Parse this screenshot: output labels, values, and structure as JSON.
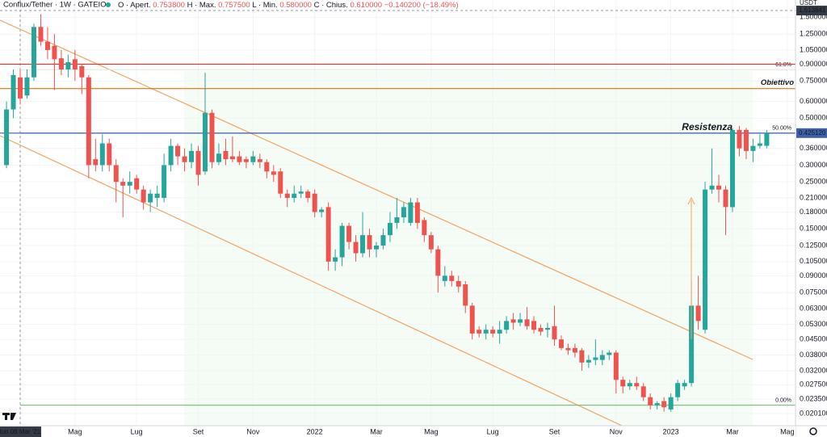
{
  "header": {
    "title": "Conflux/Tether · 1W · GATEIO",
    "open_label": "O · Apert.",
    "open": "0.753800",
    "high_label": "H · Max.",
    "high": "0.757500",
    "low_label": "L · Min.",
    "low": "0.580000",
    "close_label": "C · Chius.",
    "close": "0.610000",
    "change": "−0.140200 (−18.49%)"
  },
  "chart_data": {
    "type": "candlestick",
    "currency": "USDT",
    "log_scale": true,
    "grid": true,
    "up_color": "#26a69a",
    "down_color": "#ef5350",
    "x": [
      -2,
      -1,
      0,
      1,
      2,
      3,
      4,
      5,
      6,
      7,
      8,
      9,
      10,
      11,
      12,
      13,
      14,
      15,
      16,
      17,
      18,
      19,
      20,
      21,
      22,
      23,
      24,
      25,
      26,
      27,
      28,
      29,
      30,
      31,
      32,
      33,
      34,
      35,
      36,
      37,
      38,
      39,
      40,
      41,
      42,
      43,
      44,
      45,
      46,
      47,
      48,
      49,
      50,
      51,
      52,
      53,
      54,
      55,
      56,
      57,
      58,
      59,
      60,
      61,
      62,
      63,
      64,
      65,
      66,
      67,
      68,
      69,
      70,
      71,
      72,
      73,
      74,
      75,
      76,
      77,
      78,
      79,
      80,
      81,
      82,
      83,
      84,
      85,
      86,
      87,
      88,
      89,
      90,
      91,
      92,
      93,
      94,
      95,
      96,
      97,
      98,
      99,
      100,
      101,
      102,
      103,
      104,
      105,
      106,
      107,
      108,
      109
    ],
    "open": [
      0.3,
      0.55,
      0.78,
      0.64,
      0.78,
      1.35,
      1.15,
      1.1,
      0.96,
      0.85,
      0.95,
      0.88,
      0.78,
      0.32,
      0.3,
      0.38,
      0.3,
      0.25,
      0.24,
      0.26,
      0.23,
      0.2,
      0.21,
      0.21,
      0.3,
      0.37,
      0.33,
      0.31,
      0.35,
      0.28,
      0.53,
      0.31,
      0.35,
      0.33,
      0.33,
      0.32,
      0.31,
      0.32,
      0.31,
      0.28,
      0.28,
      0.22,
      0.21,
      0.22,
      0.225,
      0.22,
      0.18,
      0.19,
      0.105,
      0.11,
      0.155,
      0.13,
      0.115,
      0.14,
      0.12,
      0.125,
      0.14,
      0.16,
      0.17,
      0.16,
      0.2,
      0.165,
      0.14,
      0.12,
      0.085,
      0.09,
      0.085,
      0.082,
      0.065,
      0.05,
      0.048,
      0.05,
      0.048,
      0.05,
      0.056,
      0.054,
      0.056,
      0.055,
      0.051,
      0.05,
      0.052,
      0.045,
      0.041,
      0.041,
      0.04,
      0.035,
      0.036,
      0.036,
      0.038,
      0.039,
      0.029,
      0.027,
      0.028,
      0.027,
      0.024,
      0.022,
      0.023,
      0.021,
      0.024,
      0.027,
      0.028,
      0.065,
      0.05,
      0.23,
      0.24,
      0.23,
      0.19,
      0.44,
      0.44,
      0.35,
      0.37,
      0.37
    ],
    "high": [
      0.6,
      0.85,
      0.85,
      0.85,
      1.4,
      1.55,
      1.35,
      1.25,
      1.05,
      1.0,
      1.05,
      0.9,
      0.8,
      0.4,
      0.42,
      0.4,
      0.32,
      0.26,
      0.28,
      0.27,
      0.24,
      0.23,
      0.24,
      0.34,
      0.4,
      0.38,
      0.36,
      0.38,
      0.37,
      0.82,
      0.55,
      0.38,
      0.4,
      0.41,
      0.35,
      0.33,
      0.35,
      0.34,
      0.32,
      0.3,
      0.29,
      0.23,
      0.24,
      0.24,
      0.23,
      0.23,
      0.19,
      0.2,
      0.12,
      0.16,
      0.16,
      0.14,
      0.18,
      0.15,
      0.13,
      0.15,
      0.18,
      0.21,
      0.2,
      0.21,
      0.21,
      0.17,
      0.145,
      0.125,
      0.1,
      0.095,
      0.09,
      0.085,
      0.067,
      0.052,
      0.053,
      0.052,
      0.055,
      0.058,
      0.06,
      0.06,
      0.064,
      0.058,
      0.053,
      0.054,
      0.065,
      0.047,
      0.043,
      0.043,
      0.041,
      0.038,
      0.045,
      0.04,
      0.04,
      0.04,
      0.03,
      0.029,
      0.03,
      0.028,
      0.025,
      0.023,
      0.024,
      0.025,
      0.029,
      0.029,
      0.085,
      0.09,
      0.25,
      0.36,
      0.27,
      0.24,
      0.45,
      0.46,
      0.45,
      0.4,
      0.42,
      0.44
    ],
    "low": [
      0.29,
      0.5,
      0.58,
      0.62,
      0.75,
      1.1,
      0.95,
      0.68,
      0.8,
      0.78,
      0.75,
      0.65,
      0.26,
      0.28,
      0.28,
      0.28,
      0.2,
      0.17,
      0.22,
      0.22,
      0.185,
      0.18,
      0.19,
      0.2,
      0.28,
      0.3,
      0.28,
      0.29,
      0.24,
      0.27,
      0.29,
      0.3,
      0.3,
      0.31,
      0.3,
      0.29,
      0.3,
      0.29,
      0.26,
      0.25,
      0.21,
      0.19,
      0.2,
      0.21,
      0.2,
      0.17,
      0.17,
      0.095,
      0.095,
      0.1,
      0.12,
      0.105,
      0.11,
      0.11,
      0.11,
      0.12,
      0.13,
      0.15,
      0.16,
      0.155,
      0.15,
      0.13,
      0.115,
      0.075,
      0.08,
      0.08,
      0.075,
      0.06,
      0.045,
      0.046,
      0.045,
      0.046,
      0.043,
      0.048,
      0.05,
      0.052,
      0.05,
      0.048,
      0.047,
      0.046,
      0.042,
      0.04,
      0.038,
      0.037,
      0.032,
      0.033,
      0.034,
      0.034,
      0.036,
      0.025,
      0.025,
      0.026,
      0.026,
      0.023,
      0.021,
      0.021,
      0.0205,
      0.0205,
      0.023,
      0.026,
      0.027,
      0.05,
      0.048,
      0.22,
      0.2,
      0.14,
      0.18,
      0.33,
      0.32,
      0.31,
      0.36,
      0.36
    ],
    "close": [
      0.55,
      0.8,
      0.62,
      0.78,
      1.35,
      1.15,
      1.05,
      0.95,
      0.85,
      0.92,
      0.85,
      0.78,
      0.3,
      0.3,
      0.38,
      0.3,
      0.25,
      0.24,
      0.25,
      0.23,
      0.2,
      0.22,
      0.22,
      0.3,
      0.37,
      0.33,
      0.31,
      0.35,
      0.27,
      0.53,
      0.31,
      0.34,
      0.32,
      0.32,
      0.31,
      0.31,
      0.33,
      0.31,
      0.28,
      0.27,
      0.22,
      0.21,
      0.22,
      0.225,
      0.21,
      0.18,
      0.185,
      0.105,
      0.11,
      0.155,
      0.13,
      0.115,
      0.14,
      0.12,
      0.125,
      0.14,
      0.16,
      0.17,
      0.19,
      0.2,
      0.16,
      0.14,
      0.12,
      0.09,
      0.09,
      0.085,
      0.08,
      0.065,
      0.048,
      0.048,
      0.05,
      0.048,
      0.05,
      0.055,
      0.054,
      0.056,
      0.052,
      0.05,
      0.049,
      0.051,
      0.045,
      0.041,
      0.04,
      0.039,
      0.035,
      0.036,
      0.037,
      0.038,
      0.039,
      0.029,
      0.027,
      0.028,
      0.027,
      0.024,
      0.022,
      0.0225,
      0.0215,
      0.024,
      0.028,
      0.028,
      0.065,
      0.055,
      0.23,
      0.24,
      0.23,
      0.19,
      0.44,
      0.36,
      0.35,
      0.37,
      0.38,
      0.425
    ],
    "xlim": [
      -2.95,
      113.2
    ],
    "xticks": [
      {
        "value": 0,
        "label": "lun 08 Mar '21"
      },
      {
        "value": 8,
        "label": "Mag"
      },
      {
        "value": 17,
        "label": "Lug"
      },
      {
        "value": 26,
        "label": "Set"
      },
      {
        "value": 34,
        "label": "Nov"
      },
      {
        "value": 43,
        "label": "2022"
      },
      {
        "value": 52,
        "label": "Mar"
      },
      {
        "value": 60,
        "label": "Mag"
      },
      {
        "value": 69,
        "label": "Lug"
      },
      {
        "value": 78,
        "label": "Set"
      },
      {
        "value": 87,
        "label": "Nov"
      },
      {
        "value": 95,
        "label": "2023"
      },
      {
        "value": 104,
        "label": "Mar"
      },
      {
        "value": 112,
        "label": "Mag"
      }
    ],
    "ylim": [
      0.0176,
      1.81
    ],
    "yticks": [
      {
        "value": 1.5,
        "label": "1.500000"
      },
      {
        "value": 1.25,
        "label": "1.250000"
      },
      {
        "value": 1.05,
        "label": "1.050000"
      },
      {
        "value": 0.9,
        "label": "0.900000"
      },
      {
        "value": 0.75,
        "label": "0.750000"
      },
      {
        "value": 0.6,
        "label": "0.600000"
      },
      {
        "value": 0.5,
        "label": "0.500000"
      },
      {
        "value": 0.36,
        "label": "0.360000"
      },
      {
        "value": 0.3,
        "label": "0.300000"
      },
      {
        "value": 0.25,
        "label": "0.250000"
      },
      {
        "value": 0.21,
        "label": "0.210000"
      },
      {
        "value": 0.18,
        "label": "0.180000"
      },
      {
        "value": 0.15,
        "label": "0.150000"
      },
      {
        "value": 0.125,
        "label": "0.125000"
      },
      {
        "value": 0.105,
        "label": "0.105000"
      },
      {
        "value": 0.09,
        "label": "0.090000"
      },
      {
        "value": 0.075,
        "label": "0.075000"
      },
      {
        "value": 0.063,
        "label": "0.063000"
      },
      {
        "value": 0.053,
        "label": "0.053000"
      },
      {
        "value": 0.045,
        "label": "0.045000"
      },
      {
        "value": 0.038,
        "label": "0.038000"
      },
      {
        "value": 0.032,
        "label": "0.032000"
      },
      {
        "value": 0.0275,
        "label": "0.027500"
      },
      {
        "value": 0.0235,
        "label": "0.023500"
      },
      {
        "value": 0.0201,
        "label": "0.020100"
      }
    ],
    "levels": [
      {
        "value": 0.9,
        "color": "#e53935"
      },
      {
        "value": 0.69,
        "color": "#ef6c00",
        "label": "Obiettivo",
        "label_color": "#1e63c8"
      },
      {
        "value": 0.425,
        "color": "#3f5fa8",
        "label": "Resistenza",
        "label_color": "#e84a6a"
      }
    ],
    "fib_levels": [
      {
        "value": 0.848,
        "label": "61.8%",
        "color": "#d8ecd8"
      },
      {
        "value": 0.425,
        "label": "50.00%",
        "color": "#3f5fa8"
      },
      {
        "value": 0.022,
        "label": "0.00%",
        "color": "#66bb6a"
      }
    ],
    "last_price": {
      "value": 0.42512,
      "label": "0.425120"
    },
    "crosshair_price": {
      "value": 1.613841,
      "label": "1.613841"
    }
  }
}
